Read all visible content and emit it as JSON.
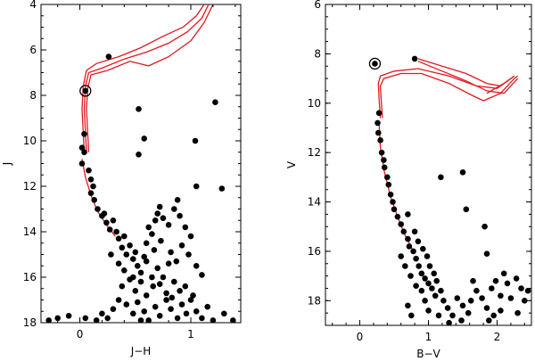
{
  "colors": {
    "isochrone": "#e0191f",
    "points": "#000000",
    "axes": "#000000"
  },
  "chart_data": [
    {
      "type": "scatter",
      "xlabel": "J−H",
      "ylabel": "J",
      "xlim": [
        -0.35,
        1.45
      ],
      "ylim": [
        18,
        4
      ],
      "xticks": [
        0,
        1
      ],
      "xtick_labels": [
        "0",
        "1"
      ],
      "yticks": [
        4,
        6,
        8,
        10,
        12,
        14,
        16,
        18
      ],
      "ytick_labels": [
        "4",
        "6",
        "8",
        "10",
        "12",
        "14",
        "16",
        "18"
      ],
      "circled_star": {
        "x": 0.05,
        "y": 7.8
      },
      "points": [
        [
          0.26,
          6.3
        ],
        [
          0.53,
          8.6
        ],
        [
          0.58,
          9.9
        ],
        [
          0.53,
          10.6
        ],
        [
          1.04,
          10.0
        ],
        [
          1.22,
          8.3
        ],
        [
          1.28,
          12.1
        ],
        [
          1.05,
          12.0
        ],
        [
          0.04,
          9.7
        ],
        [
          0.02,
          10.3
        ],
        [
          0.04,
          10.5
        ],
        [
          0.02,
          11.0
        ],
        [
          0.08,
          11.3
        ],
        [
          0.1,
          11.7
        ],
        [
          0.12,
          12.0
        ],
        [
          0.1,
          12.3
        ],
        [
          0.13,
          12.6
        ],
        [
          0.16,
          13.0
        ],
        [
          0.2,
          13.3
        ],
        [
          0.24,
          13.6
        ],
        [
          0.27,
          13.9
        ],
        [
          0.22,
          13.2
        ],
        [
          0.3,
          13.5
        ],
        [
          0.33,
          14.0
        ],
        [
          0.35,
          14.3
        ],
        [
          0.38,
          14.7
        ],
        [
          0.42,
          15.0
        ],
        [
          0.4,
          14.2
        ],
        [
          0.45,
          14.6
        ],
        [
          0.48,
          15.2
        ],
        [
          0.5,
          14.9
        ],
        [
          0.52,
          15.5
        ],
        [
          0.55,
          15.8
        ],
        [
          0.58,
          15.1
        ],
        [
          0.6,
          14.5
        ],
        [
          0.62,
          13.8
        ],
        [
          0.65,
          14.1
        ],
        [
          0.68,
          13.5
        ],
        [
          0.7,
          13.2
        ],
        [
          0.72,
          12.9
        ],
        [
          0.75,
          13.4
        ],
        [
          0.8,
          13.7
        ],
        [
          0.85,
          13.0
        ],
        [
          0.88,
          12.6
        ],
        [
          0.9,
          13.3
        ],
        [
          0.95,
          13.8
        ],
        [
          1.0,
          14.2
        ],
        [
          0.92,
          14.6
        ],
        [
          0.98,
          15.0
        ],
        [
          1.05,
          15.5
        ],
        [
          1.1,
          15.9
        ],
        [
          0.7,
          15.6
        ],
        [
          0.75,
          16.0
        ],
        [
          0.8,
          15.4
        ],
        [
          0.85,
          16.2
        ],
        [
          0.9,
          16.6
        ],
        [
          0.66,
          16.4
        ],
        [
          0.6,
          16.8
        ],
        [
          0.55,
          16.2
        ],
        [
          0.5,
          16.6
        ],
        [
          0.45,
          16.1
        ],
        [
          0.4,
          15.7
        ],
        [
          0.38,
          16.4
        ],
        [
          0.35,
          17.0
        ],
        [
          0.3,
          17.4
        ],
        [
          0.25,
          17.8
        ],
        [
          0.2,
          17.6
        ],
        [
          0.15,
          17.9
        ],
        [
          0.42,
          17.2
        ],
        [
          0.48,
          17.6
        ],
        [
          0.52,
          17.1
        ],
        [
          0.58,
          17.5
        ],
        [
          0.62,
          17.9
        ],
        [
          0.68,
          17.3
        ],
        [
          0.72,
          17.7
        ],
        [
          0.78,
          17.0
        ],
        [
          0.82,
          17.4
        ],
        [
          0.88,
          17.8
        ],
        [
          0.92,
          17.2
        ],
        [
          0.96,
          17.6
        ],
        [
          1.0,
          17.0
        ],
        [
          1.05,
          17.5
        ],
        [
          1.1,
          17.8
        ],
        [
          1.15,
          17.3
        ],
        [
          1.2,
          17.9
        ],
        [
          1.3,
          17.6
        ],
        [
          1.38,
          17.9
        ],
        [
          -0.2,
          17.8
        ],
        [
          -0.28,
          17.9
        ],
        [
          -0.1,
          17.7
        ],
        [
          0.05,
          17.8
        ],
        [
          0.55,
          17.9
        ],
        [
          0.65,
          16.0
        ],
        [
          0.72,
          16.3
        ],
        [
          0.78,
          16.7
        ],
        [
          0.83,
          16.9
        ],
        [
          0.95,
          16.4
        ],
        [
          1.02,
          16.8
        ],
        [
          0.48,
          16.0
        ],
        [
          0.35,
          15.4
        ],
        [
          0.28,
          15.0
        ],
        [
          0.6,
          15.3
        ],
        [
          0.67,
          14.8
        ],
        [
          0.73,
          14.4
        ],
        [
          0.82,
          14.9
        ],
        [
          0.87,
          15.3
        ]
      ]
    },
    {
      "type": "scatter",
      "xlabel": "B−V",
      "ylabel": "V",
      "xlim": [
        -0.5,
        2.5
      ],
      "ylim": [
        19,
        6
      ],
      "xticks": [
        0,
        1,
        2
      ],
      "xtick_labels": [
        "0",
        "1",
        "2"
      ],
      "yticks": [
        6,
        8,
        10,
        12,
        14,
        16,
        18
      ],
      "ytick_labels": [
        "6",
        "8",
        "10",
        "12",
        "14",
        "16",
        "18"
      ],
      "circled_star": {
        "x": 0.22,
        "y": 8.4
      },
      "points": [
        [
          0.8,
          8.2
        ],
        [
          1.5,
          12.8
        ],
        [
          1.18,
          13.0
        ],
        [
          1.55,
          14.3
        ],
        [
          1.82,
          15.0
        ],
        [
          1.85,
          16.1
        ],
        [
          1.65,
          17.2
        ],
        [
          0.28,
          10.4
        ],
        [
          0.26,
          10.8
        ],
        [
          0.27,
          11.2
        ],
        [
          0.3,
          11.5
        ],
        [
          0.32,
          12.0
        ],
        [
          0.35,
          12.3
        ],
        [
          0.36,
          12.6
        ],
        [
          0.4,
          13.0
        ],
        [
          0.42,
          13.3
        ],
        [
          0.45,
          13.7
        ],
        [
          0.48,
          14.0
        ],
        [
          0.5,
          14.3
        ],
        [
          0.55,
          14.6
        ],
        [
          0.6,
          14.9
        ],
        [
          0.64,
          15.2
        ],
        [
          0.7,
          15.5
        ],
        [
          0.72,
          15.8
        ],
        [
          0.78,
          16.0
        ],
        [
          0.82,
          16.3
        ],
        [
          0.86,
          16.6
        ],
        [
          0.9,
          16.9
        ],
        [
          0.95,
          17.1
        ],
        [
          1.0,
          17.3
        ],
        [
          1.05,
          17.5
        ],
        [
          1.1,
          17.8
        ],
        [
          0.7,
          14.5
        ],
        [
          0.8,
          15.2
        ],
        [
          0.85,
          15.6
        ],
        [
          0.92,
          15.9
        ],
        [
          0.98,
          16.2
        ],
        [
          1.02,
          16.6
        ],
        [
          1.08,
          16.9
        ],
        [
          1.12,
          17.2
        ],
        [
          1.18,
          17.6
        ],
        [
          1.22,
          18.0
        ],
        [
          1.28,
          18.3
        ],
        [
          1.35,
          18.6
        ],
        [
          0.9,
          17.6
        ],
        [
          0.95,
          18.0
        ],
        [
          1.0,
          18.4
        ],
        [
          0.75,
          18.6
        ],
        [
          0.7,
          18.2
        ],
        [
          1.42,
          17.9
        ],
        [
          1.5,
          18.2
        ],
        [
          1.58,
          18.5
        ],
        [
          1.62,
          18.0
        ],
        [
          1.7,
          17.6
        ],
        [
          1.78,
          17.9
        ],
        [
          1.85,
          18.3
        ],
        [
          1.92,
          17.5
        ],
        [
          1.98,
          17.2
        ],
        [
          2.05,
          17.8
        ],
        [
          2.1,
          16.9
        ],
        [
          2.15,
          17.3
        ],
        [
          2.2,
          17.9
        ],
        [
          2.28,
          17.1
        ],
        [
          2.35,
          17.5
        ],
        [
          2.4,
          18.0
        ],
        [
          2.05,
          18.4
        ],
        [
          1.95,
          18.6
        ],
        [
          1.88,
          18.8
        ],
        [
          1.48,
          18.8
        ],
        [
          1.3,
          18.9
        ],
        [
          0.6,
          16.2
        ],
        [
          0.66,
          16.6
        ],
        [
          0.74,
          17.0
        ],
        [
          0.82,
          17.4
        ],
        [
          1.15,
          18.6
        ],
        [
          2.45,
          17.6
        ],
        [
          2.3,
          18.5
        ]
      ]
    }
  ]
}
